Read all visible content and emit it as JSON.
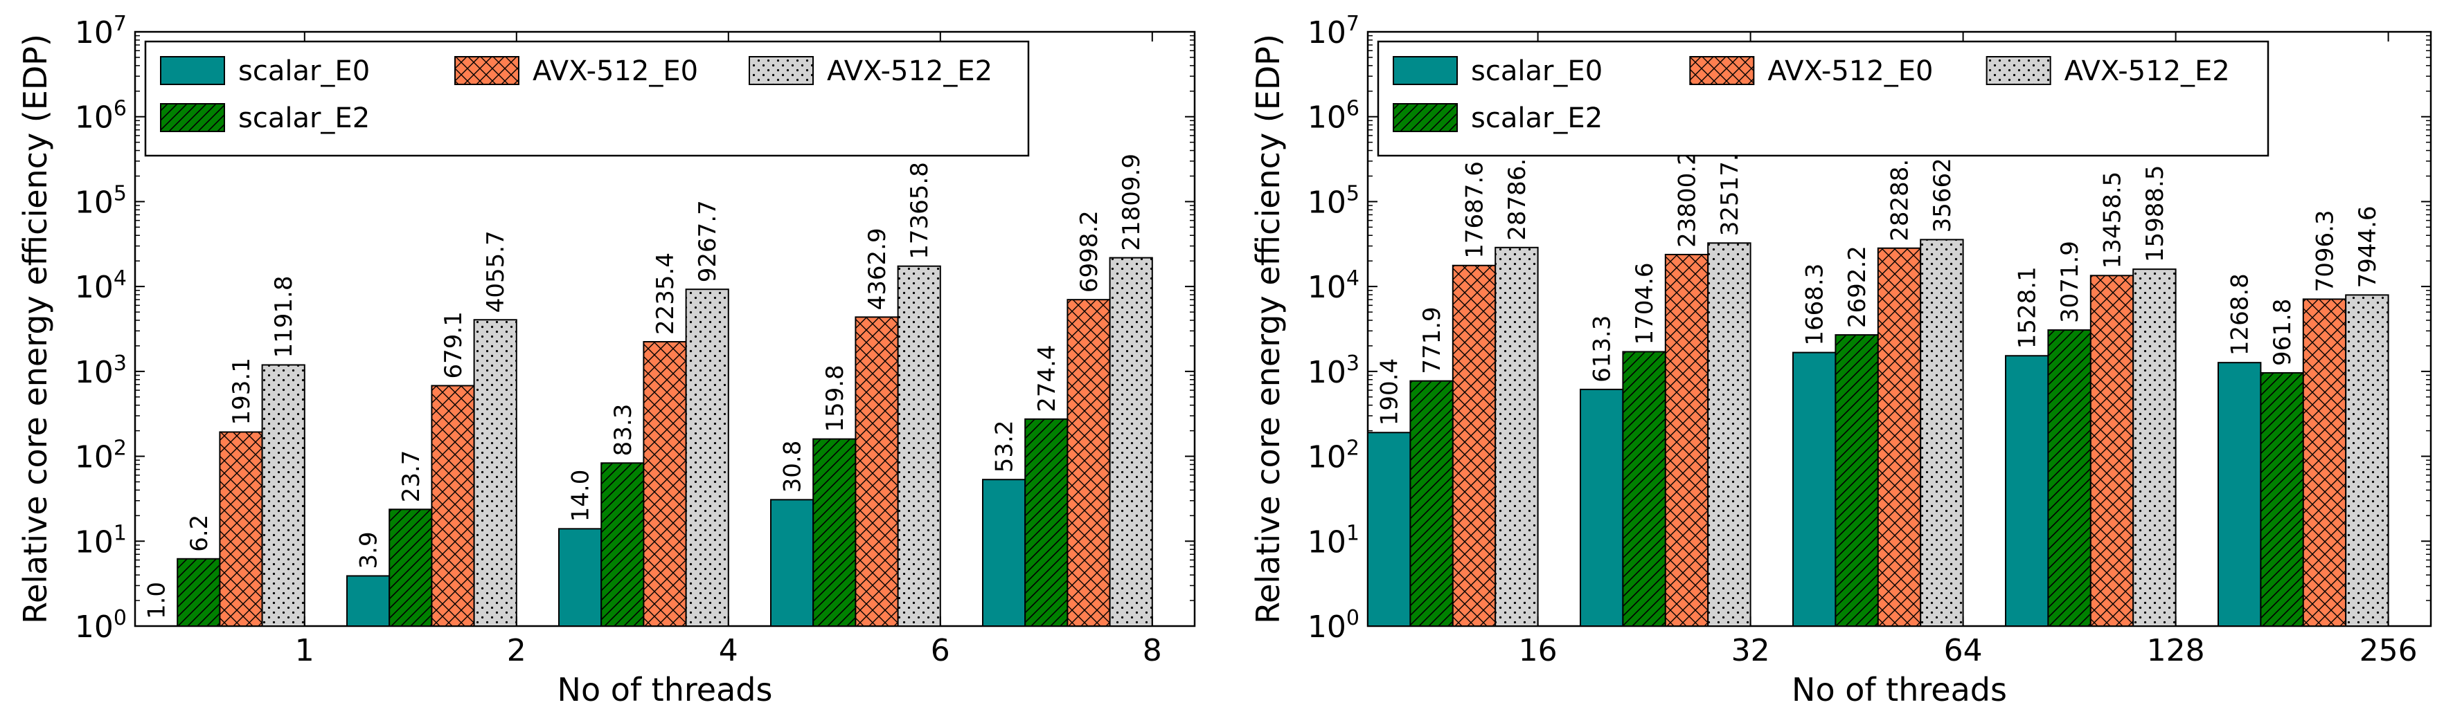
{
  "chart_data": [
    {
      "type": "bar",
      "scale": "log",
      "xlabel": "No of threads",
      "ylabel": "Relative core energy efficiency (EDP)",
      "ylim": [
        1,
        10000000
      ],
      "categories": [
        "1",
        "2",
        "4",
        "6",
        "8"
      ],
      "series": [
        {
          "name": "scalar_E0",
          "values": [
            1.0,
            3.9,
            14.0,
            30.8,
            53.2
          ],
          "labels": [
            "1.0",
            "3.9",
            "14.0",
            "30.8",
            "53.2"
          ]
        },
        {
          "name": "scalar_E2",
          "values": [
            6.2,
            23.7,
            83.3,
            159.8,
            274.4
          ],
          "labels": [
            "6.2",
            "23.7",
            "83.3",
            "159.8",
            "274.4"
          ]
        },
        {
          "name": "AVX-512_E0",
          "values": [
            193.1,
            679.1,
            2235.4,
            4362.9,
            6998.2
          ],
          "labels": [
            "193.1",
            "679.1",
            "2235.4",
            "4362.9",
            "6998.2"
          ]
        },
        {
          "name": "AVX-512_E2",
          "values": [
            1191.8,
            4055.7,
            9267.7,
            17365.8,
            21809.9
          ],
          "labels": [
            "1191.8",
            "4055.7",
            "9267.7",
            "17365.8",
            "21809.9"
          ]
        }
      ]
    },
    {
      "type": "bar",
      "scale": "log",
      "xlabel": "No of threads",
      "ylabel": "Relative core energy efficiency (EDP)",
      "ylim": [
        1,
        10000000
      ],
      "categories": [
        "16",
        "32",
        "64",
        "128",
        "256"
      ],
      "series": [
        {
          "name": "scalar_E0",
          "values": [
            190.4,
            613.3,
            1668.3,
            1528.1,
            1268.8
          ],
          "labels": [
            "190.4",
            "613.3",
            "1668.3",
            "1528.1",
            "1268.8"
          ]
        },
        {
          "name": "scalar_E2",
          "values": [
            771.9,
            1704.6,
            2692.2,
            3071.9,
            961.8
          ],
          "labels": [
            "771.9",
            "1704.6",
            "2692.2",
            "3071.9",
            "961.8"
          ]
        },
        {
          "name": "AVX-512_E0",
          "values": [
            17687.6,
            23800.2,
            28288.0,
            13458.5,
            7096.3
          ],
          "labels": [
            "17687.6",
            "23800.2",
            "28288.",
            "13458.5",
            "7096.3"
          ]
        },
        {
          "name": "AVX-512_E2",
          "values": [
            28786.0,
            32517.0,
            35662,
            15988.5,
            7944.6
          ],
          "labels": [
            "28786.",
            "32517.",
            "35662",
            "15988.5",
            "7944.6"
          ]
        }
      ]
    }
  ],
  "legend": {
    "entries": [
      "scalar_E0",
      "AVX-512_E0",
      "AVX-512_E2",
      "scalar_E2"
    ]
  },
  "colors": {
    "scalar_E0": "#008b8b",
    "scalar_E2": "#008000",
    "AVX-512_E0": "#ff7f50",
    "AVX-512_E2": "#d3d3d3"
  }
}
